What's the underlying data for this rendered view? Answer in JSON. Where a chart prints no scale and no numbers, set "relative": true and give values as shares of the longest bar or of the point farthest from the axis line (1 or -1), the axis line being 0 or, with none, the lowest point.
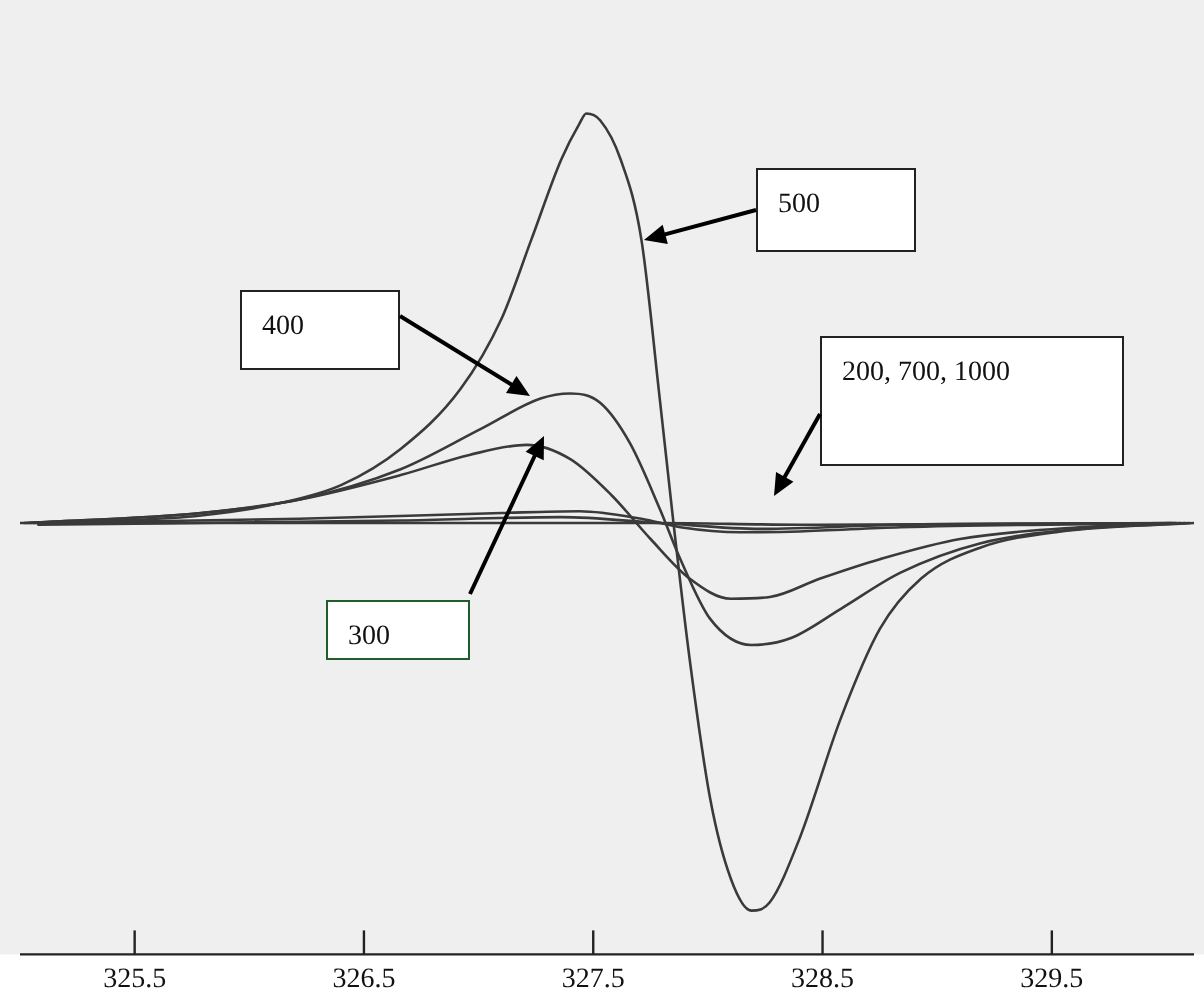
{
  "chart_data": {
    "type": "line",
    "relative": true,
    "grid": false,
    "legend": false,
    "marker": "none",
    "line_style": "solid",
    "xlim": [
      325.0,
      330.12
    ],
    "xticks": [
      325.5,
      326.5,
      327.5,
      328.5,
      329.5
    ],
    "series": [
      {
        "color": "#3a3a3a",
        "x": [
          325.0,
          325.44,
          325.79,
          326.14,
          326.4,
          326.66,
          326.92,
          327.1,
          327.23,
          327.36,
          327.44,
          327.47,
          327.53,
          327.62,
          327.71,
          327.79,
          327.85,
          327.92,
          328.01,
          328.1,
          328.19,
          328.27,
          328.4,
          328.58,
          328.75,
          328.93,
          329.19,
          329.54,
          330.12
        ],
        "values": [
          0.513,
          0.516,
          0.522,
          0.537,
          0.558,
          0.601,
          0.672,
          0.756,
          0.85,
          0.945,
          0.988,
          1.0,
          0.992,
          0.945,
          0.85,
          0.661,
          0.513,
          0.352,
          0.185,
          0.09,
          0.052,
          0.062,
          0.138,
          0.281,
          0.387,
          0.447,
          0.484,
          0.503,
          0.513
        ]
      },
      {
        "color": "#3a3a3a",
        "x": [
          325.02,
          325.79,
          326.22,
          326.66,
          327.01,
          327.27,
          327.4,
          327.53,
          327.66,
          327.79,
          327.88,
          328.01,
          328.19,
          328.36,
          328.58,
          328.84,
          329.19,
          329.62,
          330.1
        ],
        "values": [
          0.513,
          0.525,
          0.541,
          0.577,
          0.625,
          0.661,
          0.667,
          0.656,
          0.608,
          0.53,
          0.47,
          0.399,
          0.368,
          0.376,
          0.411,
          0.454,
          0.489,
          0.506,
          0.513
        ]
      },
      {
        "color": "#3a3a3a",
        "x": [
          325.04,
          325.79,
          326.22,
          326.66,
          326.96,
          327.21,
          327.4,
          327.58,
          327.75,
          327.92,
          328.1,
          328.27,
          328.49,
          328.75,
          329.1,
          329.62,
          330.08
        ],
        "values": [
          0.513,
          0.525,
          0.541,
          0.57,
          0.594,
          0.606,
          0.589,
          0.546,
          0.494,
          0.447,
          0.423,
          0.425,
          0.447,
          0.47,
          0.494,
          0.508,
          0.513
        ]
      },
      {
        "color": "#3a3a3a",
        "x": [
          325.06,
          326.22,
          327.1,
          327.44,
          327.71,
          327.88,
          328.14,
          328.4,
          328.84,
          330.06
        ],
        "values": [
          0.513,
          0.518,
          0.525,
          0.527,
          0.518,
          0.508,
          0.502,
          0.503,
          0.508,
          0.513
        ]
      },
      {
        "color": "#3a3a3a",
        "x": [
          325.08,
          326.66,
          327.36,
          327.79,
          328.23,
          328.84,
          330.04
        ],
        "values": [
          0.511,
          0.516,
          0.52,
          0.513,
          0.506,
          0.511,
          0.513
        ]
      },
      {
        "color": "#3a3a3a",
        "x": [
          325.1,
          327.1,
          327.79,
          328.4,
          330.02
        ],
        "values": [
          0.513,
          0.513,
          0.513,
          0.511,
          0.513
        ]
      }
    ],
    "annotations": [
      "500",
      "400",
      "300",
      "200, 700, 1000"
    ]
  }
}
